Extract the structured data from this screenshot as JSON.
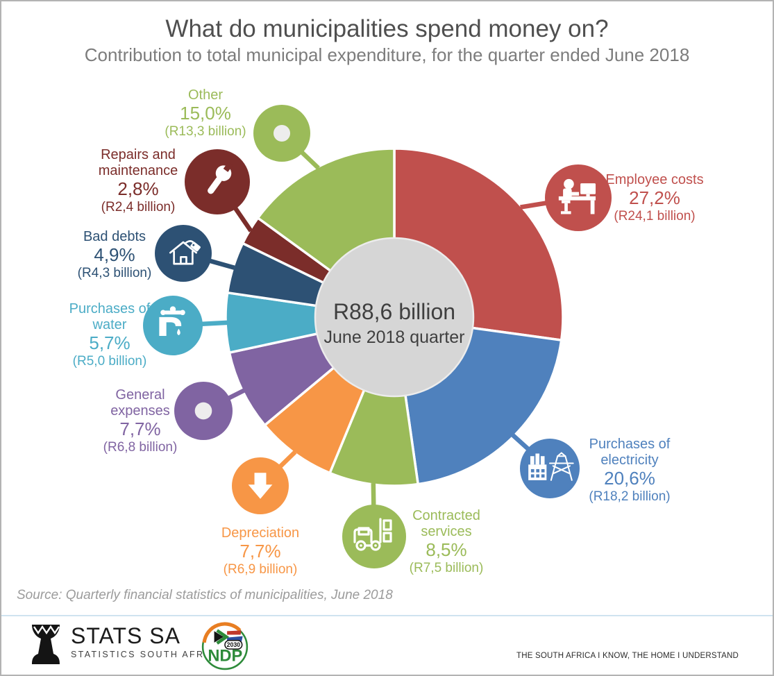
{
  "header": {
    "title": "What do municipalities spend money on?",
    "subtitle": "Contribution to total municipal expenditure, for the quarter ended June 2018"
  },
  "chart_data": {
    "type": "pie",
    "subtype": "donut",
    "title": "What do municipalities spend money on?",
    "unit": "percent of total municipal expenditure",
    "start_angle_deg": 0,
    "direction": "clockwise",
    "center": {
      "total_label": "R88,6 billion",
      "period_label": "June 2018 quarter"
    },
    "segments": [
      {
        "id": "employee-costs",
        "label": "Employee costs",
        "label_lines": [
          "Employee costs"
        ],
        "value_pct": 27.2,
        "pct_label": "27,2%",
        "amount_billion_rand": 24.1,
        "amount_label": "(R24,1 billion)",
        "color": "#C0504D",
        "icon": "person-at-desk-icon"
      },
      {
        "id": "electricity",
        "label": "Purchases of electricity",
        "label_lines": [
          "Purchases of",
          "electricity"
        ],
        "value_pct": 20.6,
        "pct_label": "20,6%",
        "amount_billion_rand": 18.2,
        "amount_label": "(R18,2 billion)",
        "color": "#4F81BD",
        "icon": "factory-pylon-icon"
      },
      {
        "id": "contracted-services",
        "label": "Contracted services",
        "label_lines": [
          "Contracted",
          "services"
        ],
        "value_pct": 8.5,
        "pct_label": "8,5%",
        "amount_billion_rand": 7.5,
        "amount_label": "(R7,5 billion)",
        "color": "#9BBB59",
        "icon": "forklift-icon"
      },
      {
        "id": "depreciation",
        "label": "Depreciation",
        "label_lines": [
          "Depreciation"
        ],
        "value_pct": 7.7,
        "pct_label": "7,7%",
        "amount_billion_rand": 6.9,
        "amount_label": "(R6,9 billion)",
        "color": "#F79646",
        "icon": "down-arrow-icon"
      },
      {
        "id": "general-expenses",
        "label": "General expenses",
        "label_lines": [
          "General",
          "expenses"
        ],
        "value_pct": 7.7,
        "pct_label": "7,7%",
        "amount_billion_rand": 6.8,
        "amount_label": "(R6,8 billion)",
        "color": "#8064A2",
        "icon": "donut-icon"
      },
      {
        "id": "water",
        "label": "Purchases of water",
        "label_lines": [
          "Purchases of",
          "water"
        ],
        "value_pct": 5.7,
        "pct_label": "5,7%",
        "amount_billion_rand": 5.0,
        "amount_label": "(R5,0 billion)",
        "color": "#4BACC6",
        "icon": "water-tap-icon"
      },
      {
        "id": "bad-debts",
        "label": "Bad debts",
        "label_lines": [
          "Bad debts"
        ],
        "value_pct": 4.9,
        "pct_label": "4,9%",
        "amount_billion_rand": 4.3,
        "amount_label": "(R4,3 billion)",
        "color": "#2D5174",
        "icon": "house-tag-icon"
      },
      {
        "id": "repairs",
        "label": "Repairs and maintenance",
        "label_lines": [
          "Repairs and",
          "maintenance"
        ],
        "value_pct": 2.8,
        "pct_label": "2,8%",
        "amount_billion_rand": 2.4,
        "amount_label": "(R2,4 billion)",
        "color": "#7B2D2A",
        "icon": "wrench-icon"
      },
      {
        "id": "other",
        "label": "Other",
        "label_lines": [
          "Other"
        ],
        "value_pct": 15.0,
        "pct_label": "15,0%",
        "amount_billion_rand": 13.3,
        "amount_label": "(R13,3 billion)",
        "color": "#9BBB59",
        "icon": "donut-icon"
      }
    ]
  },
  "source": {
    "text": "Source: Quarterly financial statistics of municipalities, June 2018"
  },
  "footer": {
    "statssa_name": "STATS SA",
    "statssa_sub": "STATISTICS SOUTH AFRICA",
    "ndp_label": "NDP",
    "ndp_year": "2030",
    "tagline": "THE SOUTH AFRICA I KNOW, THE HOME I UNDERSTAND"
  }
}
